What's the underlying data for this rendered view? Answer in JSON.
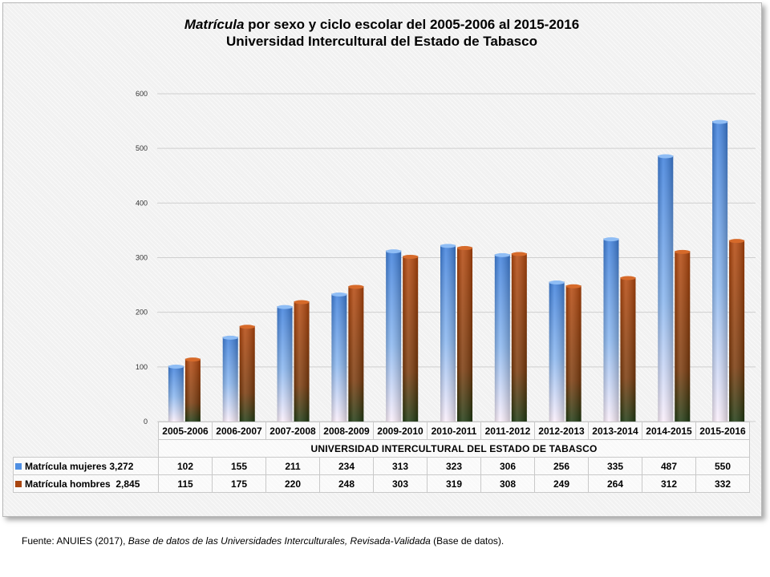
{
  "title": {
    "italic_part": "Matrícula",
    "rest": " por sexo y ciclo escolar del 2005-2006 al 2015-2016",
    "line2": "Universidad Intercultural del Estado de Tabasco"
  },
  "chart_data": {
    "type": "bar",
    "title": "Matrícula por sexo y ciclo escolar del 2005-2006 al 2015-2016 Universidad Intercultural del Estado de Tabasco",
    "categories": [
      "2005-2006",
      "2006-2007",
      "2007-2008",
      "2008-2009",
      "2009-2010",
      "2010-2011",
      "2011-2012",
      "2012-2013",
      "2013-2014",
      "2014-2015",
      "2015-2016"
    ],
    "category_group_label": "UNIVERSIDAD INTERCULTURAL DEL ESTADO DE TABASCO",
    "series": [
      {
        "name": "Matrícula mujeres 3,272",
        "values": [
          102,
          155,
          211,
          234,
          313,
          323,
          306,
          256,
          335,
          487,
          550
        ],
        "color": "#4f8fe3"
      },
      {
        "name": "Matrícula hombres  2,845",
        "values": [
          115,
          175,
          220,
          248,
          303,
          319,
          308,
          249,
          264,
          312,
          332
        ],
        "color": "#b5470c"
      }
    ],
    "y_ticks": [
      "0",
      "100",
      "200",
      "300",
      "400",
      "500",
      "600"
    ],
    "ylim": [
      0,
      600
    ],
    "grid": true,
    "legend": "data-table"
  },
  "source_note": {
    "prefix": "Fuente: ANUIES (2017), ",
    "italic": "Base de datos de las Universidades  Interculturales, Revisada-Validada",
    "suffix": "  (Base de datos)."
  }
}
